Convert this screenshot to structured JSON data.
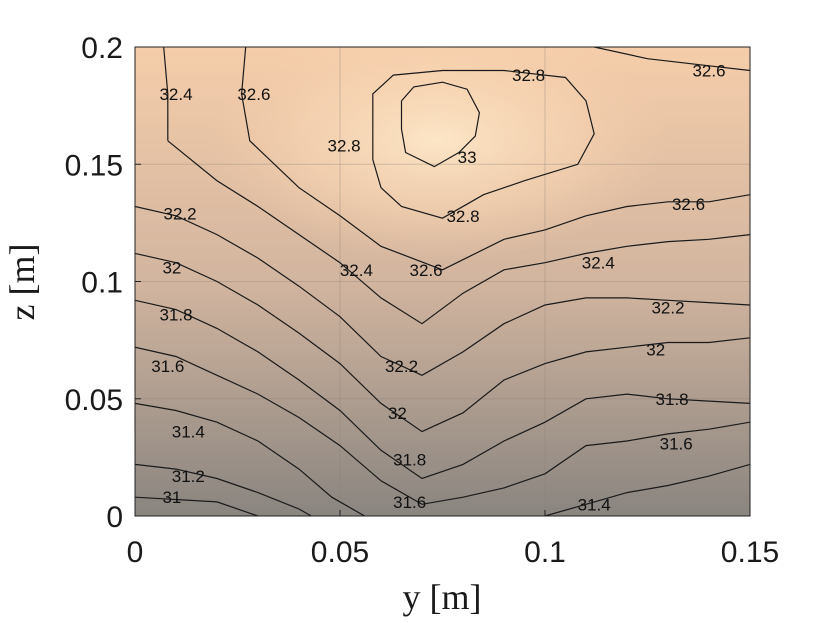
{
  "chart_data": {
    "type": "contour",
    "title": "",
    "xlabel": "y [m]",
    "ylabel": "z [m]",
    "xlim": [
      0,
      0.15
    ],
    "ylim": [
      0,
      0.2
    ],
    "x_ticks": [
      "0",
      "0.05",
      "0.1",
      "0.15"
    ],
    "y_ticks": [
      "0",
      "0.05",
      "0.1",
      "0.15",
      "0.2"
    ],
    "grid": true,
    "colormap": {
      "low": "#8a8580",
      "high": "#fde3c5"
    },
    "levels": [
      31,
      31.2,
      31.4,
      31.6,
      31.8,
      32,
      32.2,
      32.4,
      32.6,
      32.8,
      33
    ],
    "contours": [
      {
        "level": "31",
        "points": [
          [
            0,
            0.008
          ],
          [
            0.02,
            0.006
          ],
          [
            0.03,
            0.0
          ]
        ]
      },
      {
        "level": "31.2",
        "points": [
          [
            0,
            0.022
          ],
          [
            0.01,
            0.02
          ],
          [
            0.02,
            0.016
          ],
          [
            0.03,
            0.01
          ],
          [
            0.04,
            0.003
          ],
          [
            0.043,
            0.0
          ]
        ]
      },
      {
        "level": "31.4",
        "points": [
          [
            0,
            0.048
          ],
          [
            0.01,
            0.045
          ],
          [
            0.02,
            0.04
          ],
          [
            0.03,
            0.032
          ],
          [
            0.04,
            0.02
          ],
          [
            0.048,
            0.008
          ],
          [
            0.056,
            0.0
          ]
        ]
      },
      {
        "level": "31.4",
        "points": [
          [
            0.1,
            0.0
          ],
          [
            0.11,
            0.005
          ],
          [
            0.12,
            0.01
          ],
          [
            0.13,
            0.013
          ],
          [
            0.14,
            0.017
          ],
          [
            0.15,
            0.022
          ]
        ]
      },
      {
        "level": "31.6",
        "points": [
          [
            0,
            0.072
          ],
          [
            0.01,
            0.068
          ],
          [
            0.02,
            0.06
          ],
          [
            0.03,
            0.052
          ],
          [
            0.04,
            0.042
          ],
          [
            0.05,
            0.03
          ],
          [
            0.06,
            0.015
          ],
          [
            0.07,
            0.005
          ],
          [
            0.08,
            0.008
          ],
          [
            0.09,
            0.012
          ],
          [
            0.1,
            0.018
          ],
          [
            0.11,
            0.03
          ],
          [
            0.12,
            0.032
          ],
          [
            0.13,
            0.035
          ],
          [
            0.14,
            0.037
          ],
          [
            0.15,
            0.04
          ]
        ]
      },
      {
        "level": "31.8",
        "points": [
          [
            0,
            0.092
          ],
          [
            0.01,
            0.088
          ],
          [
            0.02,
            0.08
          ],
          [
            0.03,
            0.07
          ],
          [
            0.04,
            0.058
          ],
          [
            0.05,
            0.045
          ],
          [
            0.06,
            0.028
          ],
          [
            0.07,
            0.016
          ],
          [
            0.08,
            0.022
          ],
          [
            0.09,
            0.032
          ],
          [
            0.1,
            0.04
          ],
          [
            0.11,
            0.05
          ],
          [
            0.12,
            0.052
          ],
          [
            0.13,
            0.05
          ],
          [
            0.14,
            0.049
          ],
          [
            0.15,
            0.048
          ]
        ]
      },
      {
        "level": "32",
        "points": [
          [
            0,
            0.112
          ],
          [
            0.01,
            0.108
          ],
          [
            0.02,
            0.1
          ],
          [
            0.03,
            0.09
          ],
          [
            0.04,
            0.078
          ],
          [
            0.05,
            0.065
          ],
          [
            0.06,
            0.048
          ],
          [
            0.07,
            0.036
          ],
          [
            0.08,
            0.044
          ],
          [
            0.09,
            0.058
          ],
          [
            0.1,
            0.065
          ],
          [
            0.11,
            0.07
          ],
          [
            0.12,
            0.072
          ],
          [
            0.13,
            0.074
          ],
          [
            0.14,
            0.074
          ],
          [
            0.15,
            0.076
          ]
        ]
      },
      {
        "level": "32.2",
        "points": [
          [
            0,
            0.132
          ],
          [
            0.01,
            0.128
          ],
          [
            0.02,
            0.12
          ],
          [
            0.03,
            0.11
          ],
          [
            0.04,
            0.098
          ],
          [
            0.05,
            0.085
          ],
          [
            0.06,
            0.068
          ],
          [
            0.07,
            0.06
          ],
          [
            0.08,
            0.07
          ],
          [
            0.09,
            0.082
          ],
          [
            0.1,
            0.09
          ],
          [
            0.11,
            0.093
          ],
          [
            0.12,
            0.093
          ],
          [
            0.13,
            0.092
          ],
          [
            0.14,
            0.091
          ],
          [
            0.15,
            0.09
          ]
        ]
      },
      {
        "level": "32.4",
        "points": [
          [
            0.008,
            0.16
          ],
          [
            0.02,
            0.143
          ],
          [
            0.03,
            0.132
          ],
          [
            0.04,
            0.12
          ],
          [
            0.05,
            0.108
          ],
          [
            0.06,
            0.093
          ],
          [
            0.07,
            0.082
          ],
          [
            0.08,
            0.095
          ],
          [
            0.09,
            0.105
          ],
          [
            0.1,
            0.108
          ],
          [
            0.11,
            0.112
          ],
          [
            0.12,
            0.115
          ],
          [
            0.13,
            0.117
          ],
          [
            0.14,
            0.118
          ],
          [
            0.15,
            0.12
          ]
        ]
      },
      {
        "level": "32.4",
        "points": [
          [
            0.007,
            0.2
          ],
          [
            0.008,
            0.18
          ],
          [
            0.008,
            0.16
          ]
        ]
      },
      {
        "level": "32.6",
        "points": [
          [
            0.027,
            0.2
          ],
          [
            0.026,
            0.18
          ],
          [
            0.028,
            0.16
          ],
          [
            0.04,
            0.14
          ],
          [
            0.05,
            0.128
          ],
          [
            0.06,
            0.115
          ],
          [
            0.075,
            0.105
          ],
          [
            0.09,
            0.118
          ],
          [
            0.1,
            0.122
          ],
          [
            0.11,
            0.128
          ],
          [
            0.12,
            0.132
          ],
          [
            0.13,
            0.134
          ],
          [
            0.14,
            0.134
          ],
          [
            0.15,
            0.137
          ]
        ]
      },
      {
        "level": "32.6",
        "points": [
          [
            0.112,
            0.2
          ],
          [
            0.125,
            0.195
          ],
          [
            0.14,
            0.192
          ],
          [
            0.15,
            0.19
          ]
        ]
      },
      {
        "level": "32.8",
        "points": [
          [
            0.058,
            0.17
          ],
          [
            0.058,
            0.18
          ],
          [
            0.063,
            0.188
          ],
          [
            0.075,
            0.19
          ],
          [
            0.09,
            0.19
          ],
          [
            0.105,
            0.187
          ],
          [
            0.11,
            0.177
          ],
          [
            0.112,
            0.163
          ],
          [
            0.108,
            0.15
          ],
          [
            0.095,
            0.143
          ],
          [
            0.085,
            0.137
          ],
          [
            0.075,
            0.127
          ],
          [
            0.065,
            0.132
          ],
          [
            0.06,
            0.14
          ],
          [
            0.058,
            0.152
          ],
          [
            0.058,
            0.17
          ]
        ]
      },
      {
        "level": "33",
        "points": [
          [
            0.065,
            0.177
          ],
          [
            0.068,
            0.183
          ],
          [
            0.075,
            0.185
          ],
          [
            0.081,
            0.182
          ],
          [
            0.084,
            0.172
          ],
          [
            0.083,
            0.162
          ],
          [
            0.079,
            0.155
          ],
          [
            0.073,
            0.149
          ],
          [
            0.066,
            0.155
          ],
          [
            0.065,
            0.165
          ],
          [
            0.065,
            0.177
          ]
        ]
      }
    ],
    "labels": [
      {
        "text": "31",
        "x": 0.009,
        "y": 0.008
      },
      {
        "text": "31.2",
        "x": 0.013,
        "y": 0.017
      },
      {
        "text": "31.4",
        "x": 0.013,
        "y": 0.036
      },
      {
        "text": "31.6",
        "x": 0.008,
        "y": 0.064
      },
      {
        "text": "31.8",
        "x": 0.01,
        "y": 0.086
      },
      {
        "text": "32",
        "x": 0.009,
        "y": 0.106
      },
      {
        "text": "32.2",
        "x": 0.011,
        "y": 0.129
      },
      {
        "text": "32.4",
        "x": 0.01,
        "y": 0.18
      },
      {
        "text": "32.6",
        "x": 0.029,
        "y": 0.18
      },
      {
        "text": "32.6",
        "x": 0.14,
        "y": 0.19
      },
      {
        "text": "32.8",
        "x": 0.096,
        "y": 0.188
      },
      {
        "text": "32.8",
        "x": 0.051,
        "y": 0.158
      },
      {
        "text": "33",
        "x": 0.081,
        "y": 0.153
      },
      {
        "text": "32.8",
        "x": 0.08,
        "y": 0.128
      },
      {
        "text": "32.6",
        "x": 0.071,
        "y": 0.105
      },
      {
        "text": "32.4",
        "x": 0.054,
        "y": 0.105
      },
      {
        "text": "32.6",
        "x": 0.135,
        "y": 0.133
      },
      {
        "text": "32.4",
        "x": 0.113,
        "y": 0.108
      },
      {
        "text": "32.2",
        "x": 0.13,
        "y": 0.089
      },
      {
        "text": "32.2",
        "x": 0.065,
        "y": 0.064
      },
      {
        "text": "32",
        "x": 0.127,
        "y": 0.071
      },
      {
        "text": "32",
        "x": 0.064,
        "y": 0.044
      },
      {
        "text": "31.8",
        "x": 0.131,
        "y": 0.05
      },
      {
        "text": "31.8",
        "x": 0.067,
        "y": 0.024
      },
      {
        "text": "31.6",
        "x": 0.132,
        "y": 0.031
      },
      {
        "text": "31.6",
        "x": 0.067,
        "y": 0.006
      },
      {
        "text": "31.4",
        "x": 0.112,
        "y": 0.005
      }
    ]
  }
}
